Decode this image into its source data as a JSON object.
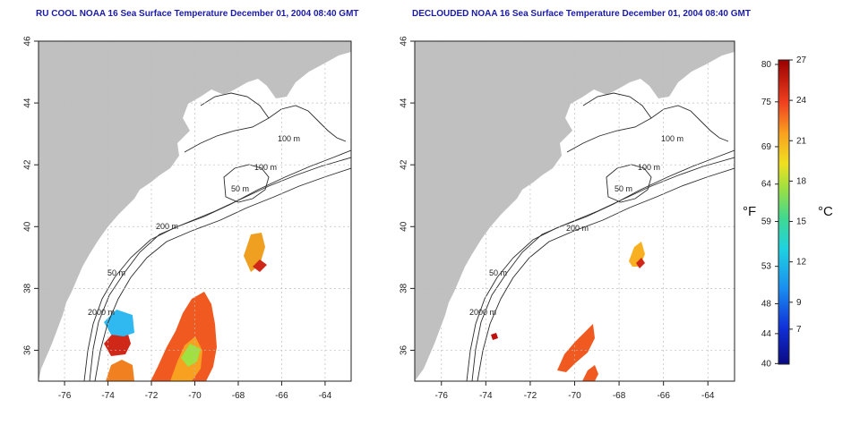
{
  "maps": [
    {
      "id": "left",
      "title": "RU COOL NOAA 16 Sea Surface Temperature December 01, 2004 08:40 GMT"
    },
    {
      "id": "right",
      "title": "DECLOUDED NOAA 16 Sea Surface Temperature December 01, 2004 08:40 GMT"
    }
  ],
  "axes": {
    "x_ticks": [
      "-76",
      "-74",
      "-72",
      "-70",
      "-68",
      "-66",
      "-64"
    ],
    "y_ticks": [
      "36",
      "38",
      "40",
      "42",
      "44",
      "46"
    ],
    "lon_range": [
      -77.2,
      -62.8
    ],
    "lat_range": [
      35.0,
      46.0
    ]
  },
  "contours": [
    {
      "label": "100 m"
    },
    {
      "label": "100 m"
    },
    {
      "label": "50 m"
    },
    {
      "label": "200 m"
    },
    {
      "label": "50 m"
    },
    {
      "label": "2000 m"
    }
  ],
  "colorbar": {
    "fahrenheit": [
      "80",
      "75",
      "69",
      "64",
      "59",
      "53",
      "48",
      "44",
      "40"
    ],
    "celsius": [
      "27",
      "24",
      "21",
      "18",
      "15",
      "12",
      "9",
      "7"
    ],
    "f_unit": "°F",
    "c_unit": "°C",
    "range_c": [
      4.4,
      27
    ]
  },
  "colors": {
    "land": "#c0c0c0",
    "ocean": "#ffffff",
    "title": "#1a1aa6"
  }
}
